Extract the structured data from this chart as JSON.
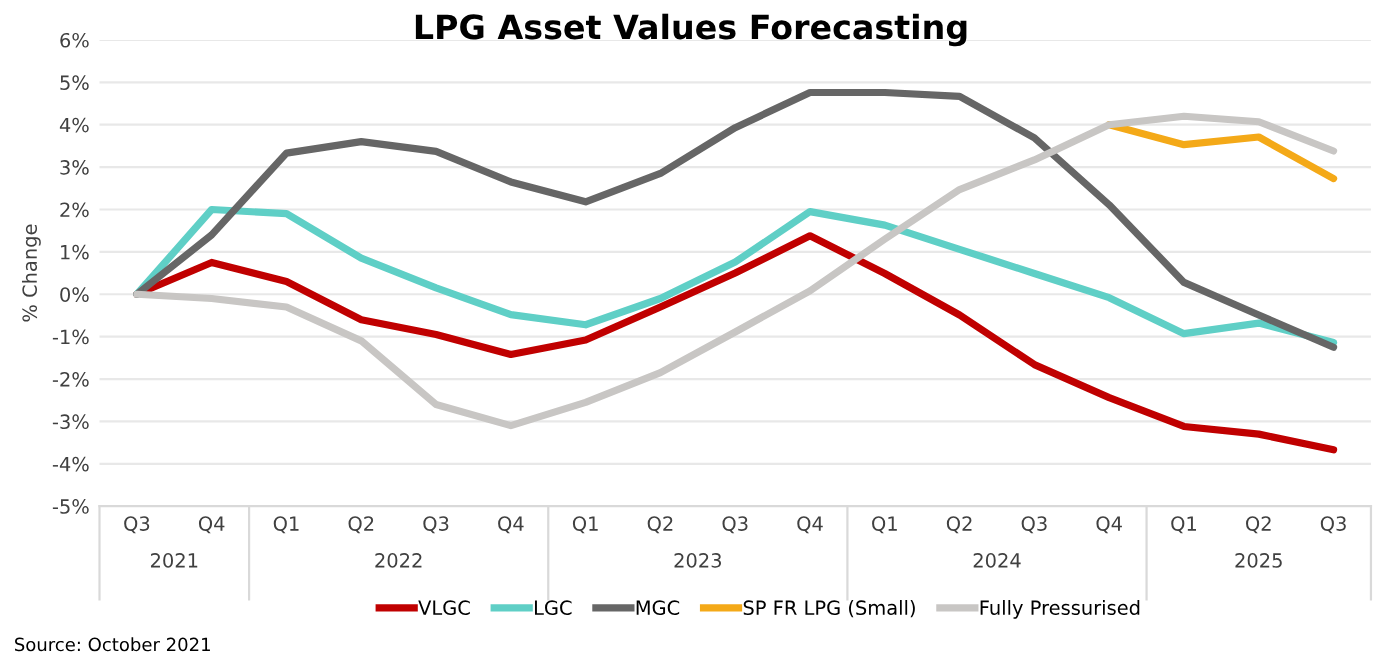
{
  "chart_data": {
    "type": "line",
    "title": "LPG Asset Values Forecasting",
    "ylabel": "% Change",
    "categories": [
      "Q3",
      "Q4",
      "Q1",
      "Q2",
      "Q3",
      "Q4",
      "Q1",
      "Q2",
      "Q3",
      "Q4",
      "Q1",
      "Q2",
      "Q3",
      "Q4",
      "Q1",
      "Q2",
      "Q3"
    ],
    "series": [
      {
        "name": "VLGC",
        "color": "#c00000",
        "values": [
          0,
          0.75,
          0.3,
          -0.6,
          -0.95,
          -1.42,
          -1.08,
          -0.3,
          0.5,
          1.38,
          0.49,
          -0.49,
          -1.66,
          -2.44,
          -3.12,
          -3.3,
          -3.67
        ]
      },
      {
        "name": "LGC",
        "color": "#5fcfc6",
        "values": [
          0,
          2.0,
          1.9,
          0.85,
          0.15,
          -0.48,
          -0.72,
          -0.1,
          0.76,
          1.95,
          1.63,
          1.06,
          0.49,
          -0.08,
          -0.93,
          -0.68,
          -1.14
        ]
      },
      {
        "name": "MGC",
        "color": "#666666",
        "values": [
          0,
          1.4,
          3.33,
          3.6,
          3.37,
          2.65,
          2.18,
          2.85,
          3.93,
          4.76,
          4.76,
          4.67,
          3.69,
          2.11,
          0.28,
          -0.49,
          -1.25
        ]
      },
      {
        "name": "SP FR LPG (Small)",
        "color": "#f4a918",
        "values": [
          null,
          null,
          null,
          null,
          null,
          null,
          null,
          null,
          null,
          null,
          null,
          null,
          null,
          4.0,
          3.53,
          3.71,
          2.73
        ]
      },
      {
        "name": "Fully Pressurised",
        "color": "#c8c6c4",
        "values": [
          0,
          -0.1,
          -0.3,
          -1.1,
          -2.6,
          -3.1,
          -2.55,
          -1.85,
          -0.89,
          0.08,
          1.3,
          2.47,
          3.17,
          4.0,
          4.2,
          4.07,
          3.38
        ]
      }
    ],
    "ylim": [
      -5,
      6
    ],
    "yticks": [
      {
        "value": -5,
        "label": "-5%"
      },
      {
        "value": -4,
        "label": "-4%"
      },
      {
        "value": -3,
        "label": "-3%"
      },
      {
        "value": -2,
        "label": "-2%"
      },
      {
        "value": -1,
        "label": "-1%"
      },
      {
        "value": 0,
        "label": "0%"
      },
      {
        "value": 1,
        "label": "1%"
      },
      {
        "value": 2,
        "label": "2%"
      },
      {
        "value": 3,
        "label": "3%"
      },
      {
        "value": 4,
        "label": "4%"
      },
      {
        "value": 5,
        "label": "5%"
      },
      {
        "value": 6,
        "label": "6%"
      }
    ],
    "grid": "y",
    "legend": "bottom",
    "marker": "none",
    "line_style": "solid",
    "annotations": [
      "2021",
      "2022",
      "2023",
      "2024",
      "2025",
      "Source: October 2021"
    ]
  }
}
